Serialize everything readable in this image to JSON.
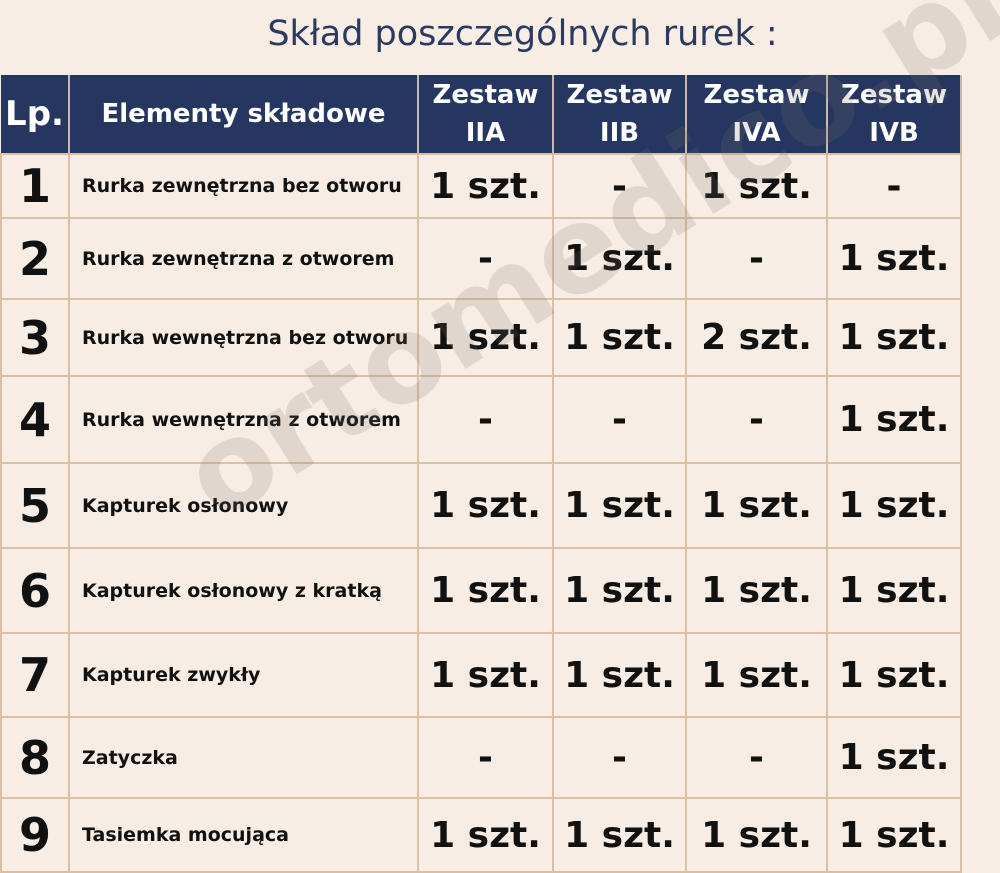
{
  "title": "Skład poszczególnych rurek :",
  "watermark": "ortomedico.pl",
  "colors": {
    "header_bg": "#253760",
    "background": "#f7ede4",
    "border": "#dcc0a5"
  },
  "headers": [
    "Lp.",
    "Elementy składowe",
    "Zestaw IIA",
    "Zestaw IIB",
    "Zestaw IVA",
    "Zestaw IVB"
  ],
  "rows": [
    {
      "lp": "1",
      "name": "Rurka zewnętrzna bez otworu",
      "v": [
        "1 szt.",
        "-",
        "1 szt.",
        "-"
      ]
    },
    {
      "lp": "2",
      "name": "Rurka zewnętrzna z otworem",
      "v": [
        "-",
        "1 szt.",
        "-",
        "1 szt."
      ]
    },
    {
      "lp": "3",
      "name": "Rurka wewnętrzna bez otworu",
      "v": [
        "1 szt.",
        "1 szt.",
        "2 szt.",
        "1 szt."
      ]
    },
    {
      "lp": "4",
      "name": "Rurka wewnętrzna z otworem",
      "v": [
        "-",
        "-",
        "-",
        "1 szt."
      ]
    },
    {
      "lp": "5",
      "name": "Kapturek osłonowy",
      "v": [
        "1 szt.",
        "1 szt.",
        "1 szt.",
        "1 szt."
      ]
    },
    {
      "lp": "6",
      "name": "Kapturek osłonowy z kratką",
      "v": [
        "1 szt.",
        "1 szt.",
        "1 szt.",
        "1 szt."
      ]
    },
    {
      "lp": "7",
      "name": "Kapturek zwykły",
      "v": [
        "1 szt.",
        "1 szt.",
        "1 szt.",
        "1 szt."
      ]
    },
    {
      "lp": "8",
      "name": "Zatyczka",
      "v": [
        "-",
        "-",
        "-",
        "1 szt."
      ]
    },
    {
      "lp": "9",
      "name": "Tasiemka mocująca",
      "v": [
        "1 szt.",
        "1 szt.",
        "1 szt.",
        "1 szt."
      ]
    }
  ]
}
